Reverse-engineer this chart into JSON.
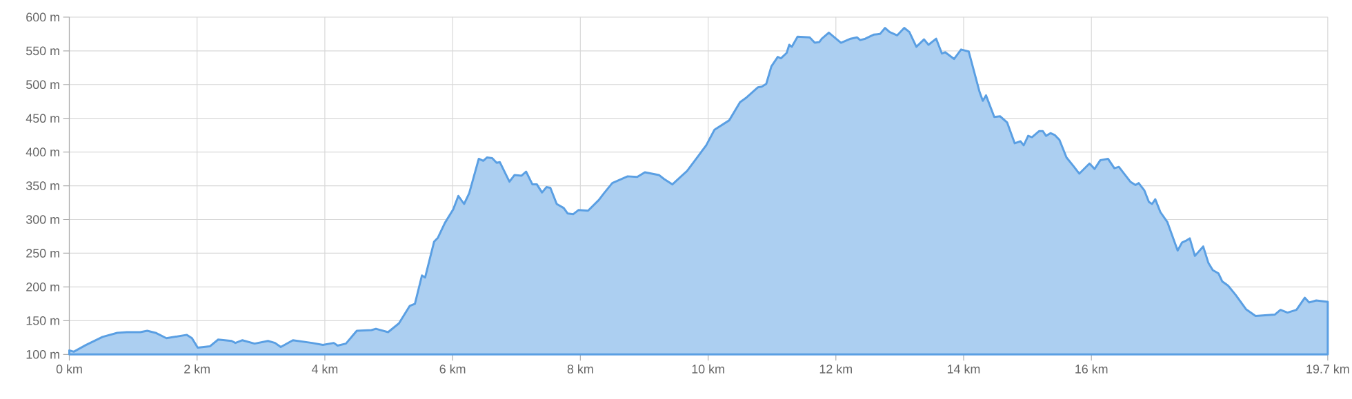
{
  "chart_data": {
    "type": "area",
    "color": "#5a9fe3",
    "grid": true,
    "xlim": [
      0,
      19.7
    ],
    "ylim": [
      100,
      600
    ],
    "xticks": [
      {
        "value": 0,
        "label": "0 km"
      },
      {
        "value": 2,
        "label": "2 km"
      },
      {
        "value": 4,
        "label": "4 km"
      },
      {
        "value": 6,
        "label": "6 km"
      },
      {
        "value": 8,
        "label": "8 km"
      },
      {
        "value": 10,
        "label": "10 km"
      },
      {
        "value": 12,
        "label": "12 km"
      },
      {
        "value": 14,
        "label": "14 km"
      },
      {
        "value": 16,
        "label": "16 km"
      },
      {
        "value": 19.7,
        "label": "19.7 km"
      }
    ],
    "yticks": [
      {
        "value": 100,
        "label": "100 m"
      },
      {
        "value": 150,
        "label": "150 m"
      },
      {
        "value": 200,
        "label": "200 m"
      },
      {
        "value": 250,
        "label": "250 m"
      },
      {
        "value": 300,
        "label": "300 m"
      },
      {
        "value": 350,
        "label": "350 m"
      },
      {
        "value": 400,
        "label": "400 m"
      },
      {
        "value": 450,
        "label": "450 m"
      },
      {
        "value": 500,
        "label": "500 m"
      },
      {
        "value": 550,
        "label": "550 m"
      },
      {
        "value": 600,
        "label": "600 m"
      }
    ],
    "x": [
      0,
      0.07,
      0.26,
      0.52,
      0.75,
      0.9,
      1.11,
      1.22,
      1.35,
      1.52,
      1.84,
      1.92,
      2.01,
      2.2,
      2.33,
      2.54,
      2.6,
      2.71,
      2.9,
      3.11,
      3.22,
      3.31,
      3.5,
      3.8,
      3.97,
      4.14,
      4.2,
      4.33,
      4.5,
      4.73,
      4.8,
      4.99,
      5.16,
      5.33,
      5.41,
      5.52,
      5.57,
      5.71,
      5.77,
      5.88,
      6.01,
      6.09,
      6.18,
      6.26,
      6.41,
      6.48,
      6.54,
      6.62,
      6.69,
      6.74,
      6.89,
      6.97,
      7.08,
      7.15,
      7.25,
      7.32,
      7.4,
      7.47,
      7.53,
      7.63,
      7.74,
      7.8,
      7.89,
      7.97,
      8.12,
      8.29,
      8.37,
      8.5,
      8.74,
      8.89,
      9.01,
      9.23,
      9.31,
      9.44,
      9.67,
      9.86,
      9.97,
      10.1,
      10.33,
      10.5,
      10.59,
      10.78,
      10.84,
      10.91,
      10.99,
      11.09,
      11.14,
      11.23,
      11.27,
      11.31,
      11.4,
      11.59,
      11.67,
      11.74,
      11.78,
      11.89,
      12.08,
      12.23,
      12.33,
      12.38,
      12.46,
      12.59,
      12.69,
      12.77,
      12.84,
      12.96,
      13.07,
      13.15,
      13.26,
      13.38,
      13.45,
      13.57,
      13.66,
      13.71,
      13.85,
      13.96,
      14.08,
      14.25,
      14.3,
      14.35,
      14.48,
      14.57,
      14.68,
      14.8,
      14.89,
      14.94,
      15.01,
      15.07,
      15.18,
      15.24,
      15.29,
      15.36,
      15.43,
      15.5,
      15.61,
      15.72,
      15.81,
      15.97,
      16.05,
      16.14,
      16.26,
      16.36,
      16.43,
      16.61,
      16.69,
      16.74,
      16.83,
      16.9,
      16.95,
      17.0,
      17.08,
      17.19,
      17.35,
      17.42,
      17.49,
      17.54,
      17.62,
      17.75,
      17.83,
      17.9,
      17.99,
      18.05,
      18.14,
      18.26,
      18.42,
      18.57,
      18.87,
      18.96,
      19.07,
      19.21,
      19.34,
      19.41,
      19.52,
      19.7
    ],
    "values": [
      106,
      104,
      114,
      126,
      132,
      133,
      133,
      135,
      132,
      124,
      129,
      124,
      110,
      112,
      122,
      120,
      117,
      121,
      116,
      120,
      117,
      111,
      121,
      117,
      114,
      117,
      113,
      116,
      135,
      136,
      138,
      133,
      146,
      172,
      175,
      217,
      214,
      267,
      273,
      295,
      315,
      335,
      323,
      339,
      390,
      387,
      392,
      391,
      384,
      385,
      356,
      366,
      365,
      371,
      352,
      352,
      340,
      348,
      347,
      323,
      317,
      309,
      308,
      314,
      313,
      329,
      339,
      354,
      364,
      363,
      370,
      366,
      360,
      352,
      372,
      396,
      410,
      433,
      447,
      474,
      480,
      496,
      497,
      501,
      527,
      541,
      539,
      547,
      559,
      556,
      571,
      570,
      562,
      563,
      568,
      577,
      562,
      568,
      570,
      566,
      568,
      574,
      575,
      584,
      578,
      573,
      584,
      578,
      556,
      567,
      559,
      568,
      546,
      548,
      538,
      552,
      549,
      489,
      476,
      484,
      452,
      453,
      444,
      413,
      416,
      410,
      424,
      422,
      431,
      431,
      424,
      428,
      425,
      418,
      392,
      379,
      368,
      383,
      375,
      388,
      390,
      376,
      378,
      356,
      351,
      354,
      343,
      326,
      323,
      330,
      311,
      296,
      254,
      266,
      269,
      272,
      246,
      260,
      236,
      225,
      220,
      208,
      202,
      188,
      167,
      157,
      159,
      166,
      162,
      166,
      184,
      177,
      180,
      178
    ]
  }
}
